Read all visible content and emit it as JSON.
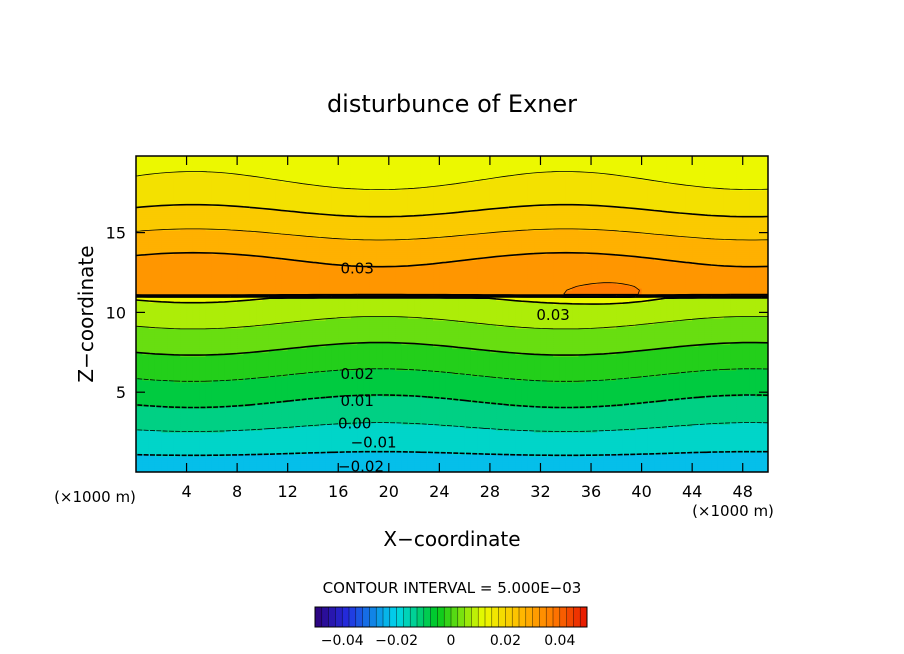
{
  "chart_data": {
    "type": "contour",
    "title": "disturbunce of Exner",
    "xlabel": "X−coordinate",
    "ylabel": "Z−coordinate",
    "x_unit": "(×1000 m)",
    "y_unit": "(×1000 m)",
    "xlim": [
      0,
      50
    ],
    "ylim": [
      0,
      19.8
    ],
    "x_ticks": [
      4,
      8,
      12,
      16,
      20,
      24,
      28,
      32,
      36,
      40,
      44,
      48
    ],
    "y_ticks": [
      5,
      10,
      15
    ],
    "contour_interval_text": "CONTOUR INTERVAL = 5.000E−03",
    "colorbar": {
      "min": -0.05,
      "max": 0.05,
      "ticks": [
        -0.04,
        -0.02,
        0,
        0.02,
        0.04
      ],
      "tick_labels": [
        "−0.04",
        "−0.02",
        "0",
        "0.02",
        "0.04"
      ]
    },
    "contour_labels": [
      {
        "text": "0.03",
        "x": 17.5,
        "y": 12.8
      },
      {
        "text": "0.03",
        "x": 33.0,
        "y": 9.9
      },
      {
        "text": "0.02",
        "x": 17.5,
        "y": 6.2
      },
      {
        "text": "0.01",
        "x": 17.5,
        "y": 4.5
      },
      {
        "text": "0.00",
        "x": 17.3,
        "y": 3.1
      },
      {
        "text": "−0.01",
        "x": 18.8,
        "y": 1.9
      },
      {
        "text": "−0.02",
        "x": 17.8,
        "y": 0.4
      }
    ]
  }
}
